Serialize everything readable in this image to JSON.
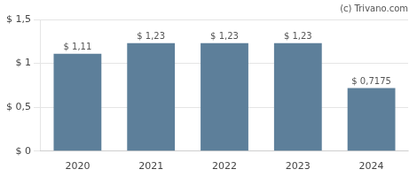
{
  "chart_data": {
    "type": "bar",
    "annotations": [
      "(c) Trivano.com"
    ],
    "categories": [
      "2020",
      "2021",
      "2022",
      "2023",
      "2024"
    ],
    "values": [
      1.11,
      1.23,
      1.23,
      1.23,
      0.7175
    ],
    "value_labels": [
      "$ 1,11",
      "$ 1,23",
      "$ 1,23",
      "$ 1,23",
      "$ 0,7175"
    ],
    "data_labels": true,
    "color": "#5d7f9a",
    "ylim": [
      0,
      1.5
    ],
    "yticks": [
      {
        "value": 0,
        "label": "$ 0"
      },
      {
        "value": 0.5,
        "label": "$ 0,5"
      },
      {
        "value": 1.0,
        "label": "$ 1"
      },
      {
        "value": 1.5,
        "label": "$ 1,5"
      }
    ],
    "grid": true
  }
}
